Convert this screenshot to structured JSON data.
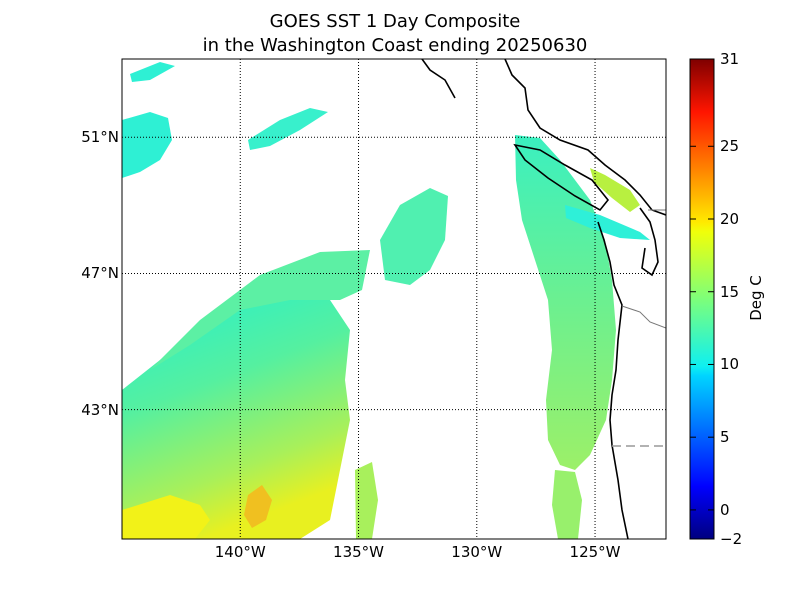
{
  "title_line1": "GOES SST 1 Day Composite",
  "title_line2": "in the Washington Coast ending 20250630",
  "colorbar": {
    "label": "Deg C",
    "ticks": [
      "31",
      "25",
      "20",
      "15",
      "10",
      "5",
      "0",
      "−2"
    ],
    "tick_values": [
      31,
      25,
      20,
      15,
      10,
      5,
      0,
      -2
    ],
    "range": [
      -2,
      31
    ],
    "colormap": "jet"
  },
  "axes": {
    "lat_ticks": [
      "51°N",
      "47°N",
      "43°N"
    ],
    "lat_values": [
      51,
      47,
      43
    ],
    "lon_ticks": [
      "140°W",
      "135°W",
      "130°W",
      "125°W"
    ],
    "lon_values": [
      -140,
      -135,
      -130,
      -125
    ],
    "lon_range": [
      -145,
      -122
    ],
    "lat_range": [
      39.2,
      53.3
    ],
    "grid": "dotted"
  },
  "colors": {
    "land": "#ffffff",
    "coastline": "#000000",
    "sst_cool": "#2ef0c8",
    "sst_mid": "#8cf07a",
    "sst_warm": "#f2f21a"
  }
}
